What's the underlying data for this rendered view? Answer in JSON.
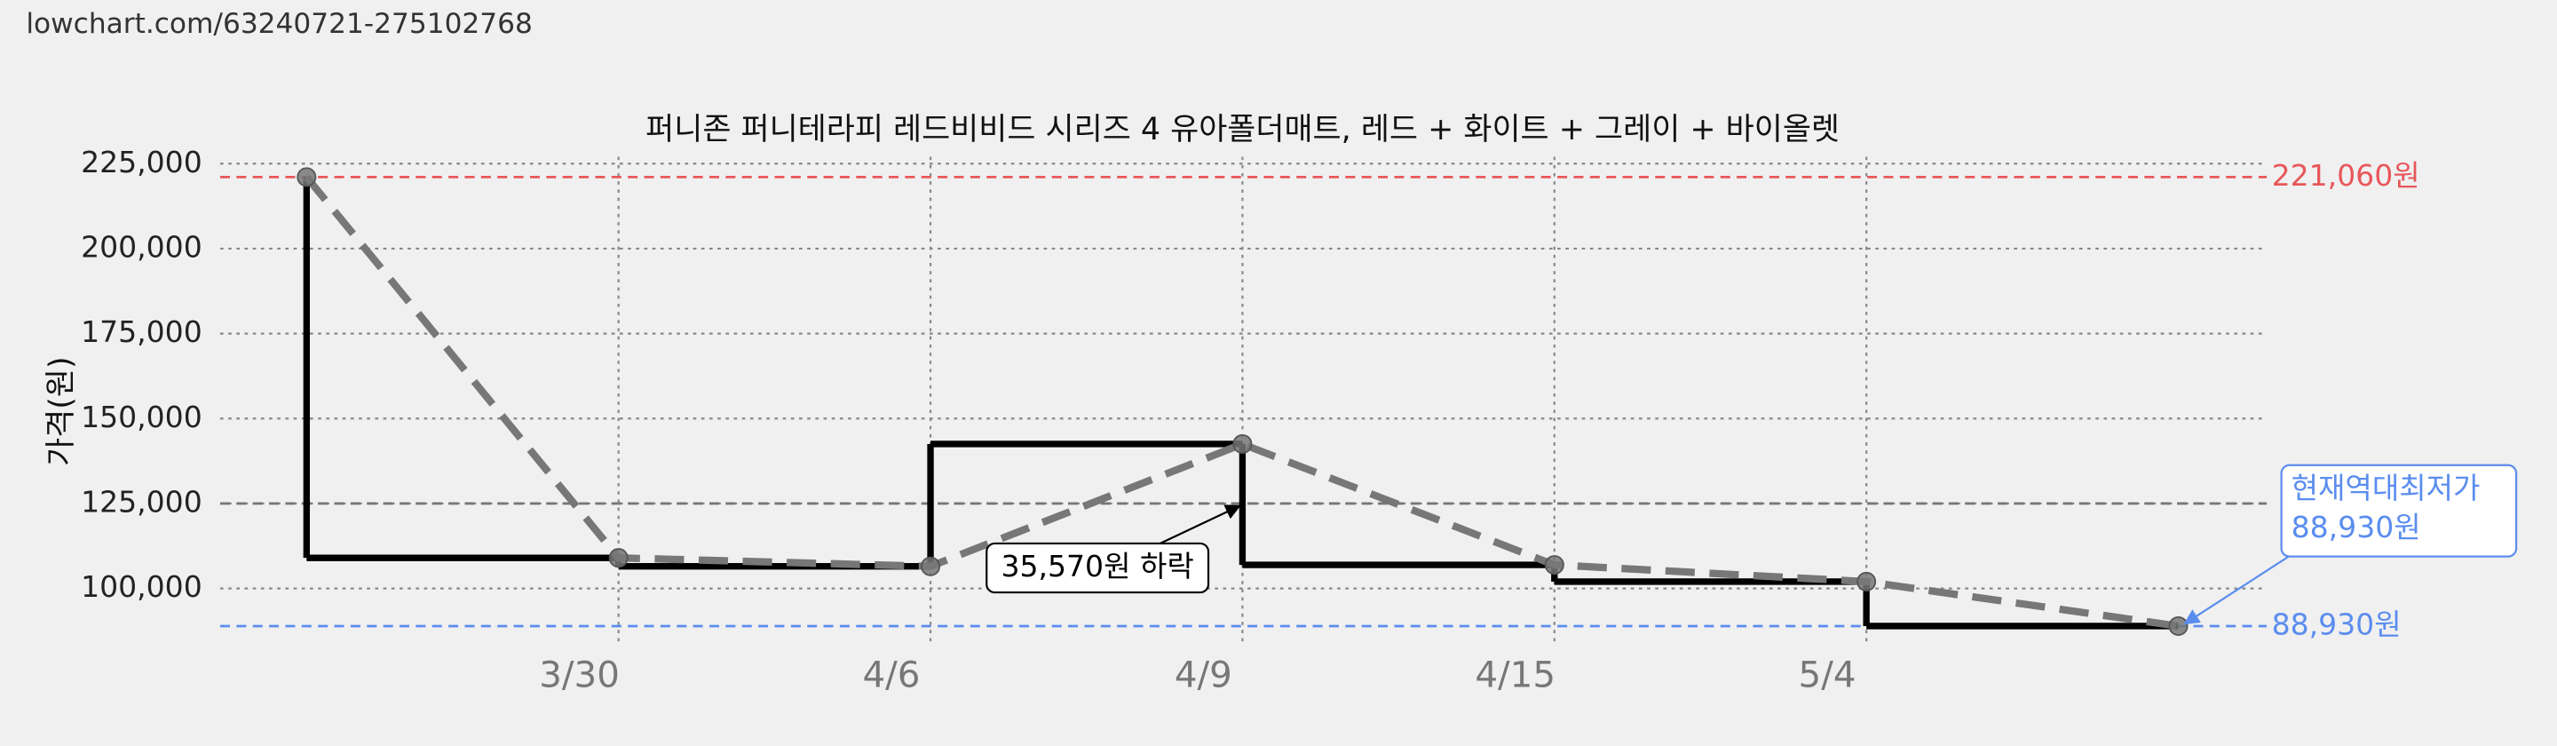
{
  "header": {
    "url": "lowchart.com/63240721-275102768"
  },
  "chart_data": {
    "type": "line",
    "title": "퍼니존 퍼니테라피 레드비비드 시리즈 4 유아폴더매트, 레드 + 화이트 + 그레이 + 바이올렛",
    "y_label": "가격(원)",
    "categories": [
      null,
      "3/30",
      "4/6",
      "4/9",
      "4/15",
      "5/4",
      null
    ],
    "values": [
      221060,
      109000,
      106500,
      142500,
      106930,
      102000,
      88930
    ],
    "line_color": "#777777",
    "step_color": "#000000",
    "ylim": [
      83000,
      227000
    ],
    "yticks": [
      {
        "value": 100000,
        "label": "100,000"
      },
      {
        "value": 125000,
        "label": "125,000"
      },
      {
        "value": 150000,
        "label": "150,000"
      },
      {
        "value": 175000,
        "label": "175,000"
      },
      {
        "value": 200000,
        "label": "200,000"
      },
      {
        "value": 225000,
        "label": "225,000"
      }
    ],
    "grid": true,
    "reference_lines": [
      {
        "value": 221060,
        "label": "221,060원",
        "color": "#e8575a"
      },
      {
        "value": 125000,
        "color": "#777777"
      },
      {
        "value": 88930,
        "label": "88,930원",
        "color": "#5b8def"
      }
    ],
    "annotations": [
      {
        "text": "35,570원 하락"
      },
      {
        "lines": [
          "현재역대최저가",
          "88,930원"
        ]
      }
    ]
  }
}
